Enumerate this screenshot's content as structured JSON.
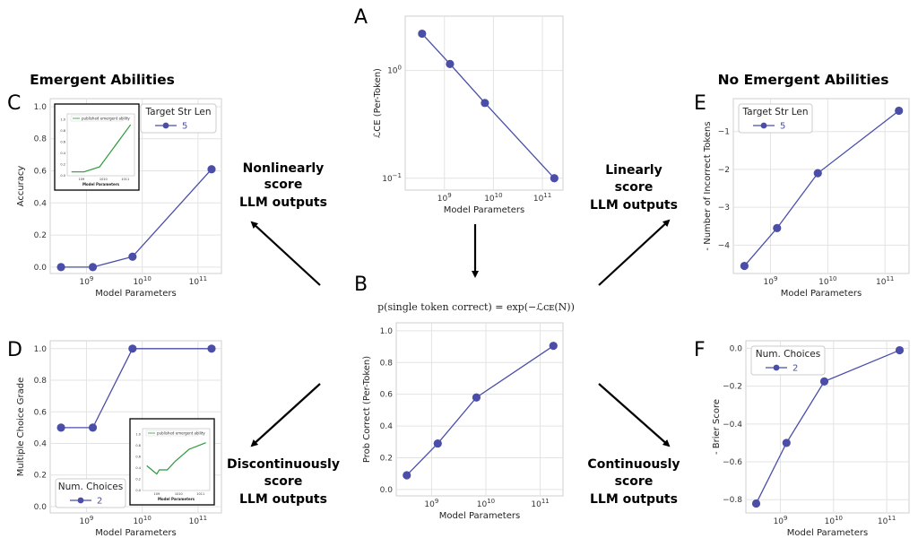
{
  "figure": {
    "panel_labels": [
      "A",
      "B",
      "C",
      "D",
      "E",
      "F"
    ],
    "headers": {
      "left": "Emergent Abilities",
      "right": "No Emergent Abilities"
    },
    "arrow_labels": {
      "top_left": [
        "Nonlinearly",
        "score",
        "LLM outputs"
      ],
      "bottom_left": [
        "Discontinuously",
        "score",
        "LLM outputs"
      ],
      "top_right": [
        "Linearly",
        "score",
        "LLM outputs"
      ],
      "bottom_right": [
        "Continuously",
        "score",
        "LLM outputs"
      ]
    },
    "formula_B": "p(single token correct) = exp(−ℒᴄᴇ(N))"
  },
  "chart_data": [
    {
      "panel": "A",
      "type": "line",
      "x_scale": "log",
      "y_scale": "log",
      "xlabel": "Model Parameters",
      "ylabel": "ℒCE (Per-Token)",
      "x_ticks": [
        "10^9",
        "10^10",
        "10^11"
      ],
      "y_ticks": [
        "10^0",
        "10^-1"
      ],
      "grid": true,
      "color": "#4a4ea8",
      "x": [
        350000000.0,
        1300000000.0,
        6700000000.0,
        175000000000.0
      ],
      "y": [
        2.2,
        1.15,
        0.5,
        0.1
      ]
    },
    {
      "panel": "B",
      "type": "line",
      "x_scale": "log",
      "xlabel": "Model Parameters",
      "ylabel": "Prob Correct (Per-Token)",
      "x_ticks": [
        "10^9",
        "10^10",
        "10^11"
      ],
      "ylim": [
        0.0,
        1.0
      ],
      "y_ticks": [
        "0.0",
        "0.2",
        "0.4",
        "0.6",
        "0.8",
        "1.0"
      ],
      "grid": true,
      "color": "#4a4ea8",
      "x": [
        350000000.0,
        1300000000.0,
        6700000000.0,
        175000000000.0
      ],
      "y": [
        0.09,
        0.29,
        0.58,
        0.905
      ]
    },
    {
      "panel": "C",
      "type": "line",
      "x_scale": "log",
      "xlabel": "Model Parameters",
      "ylabel": "Accuracy",
      "x_ticks": [
        "10^9",
        "10^10",
        "10^11"
      ],
      "ylim": [
        0.0,
        1.0
      ],
      "y_ticks": [
        "0.0",
        "0.2",
        "0.4",
        "0.6",
        "0.8",
        "1.0"
      ],
      "grid": true,
      "legend": {
        "title": "Target Str Len",
        "entries": [
          "5"
        ],
        "placement": "top-right"
      },
      "color": "#4a4ea8",
      "x": [
        350000000.0,
        1300000000.0,
        6700000000.0,
        175000000000.0
      ],
      "y": [
        0.0,
        0.0,
        0.065,
        0.61
      ]
    },
    {
      "panel": "D",
      "type": "line",
      "x_scale": "log",
      "xlabel": "Model Parameters",
      "ylabel": "Multiple Choice Grade",
      "x_ticks": [
        "10^9",
        "10^10",
        "10^11"
      ],
      "ylim": [
        0.0,
        1.0
      ],
      "y_ticks": [
        "0.0",
        "0.2",
        "0.4",
        "0.6",
        "0.8",
        "1.0"
      ],
      "grid": true,
      "legend": {
        "title": "Num. Choices",
        "entries": [
          "2"
        ],
        "placement": "bottom-left"
      },
      "color": "#4a4ea8",
      "x": [
        350000000.0,
        1300000000.0,
        6700000000.0,
        175000000000.0
      ],
      "y": [
        0.5,
        0.5,
        1.0,
        1.0
      ]
    },
    {
      "panel": "E",
      "type": "line",
      "x_scale": "log",
      "xlabel": "Model Parameters",
      "ylabel": "- Number of Incorrect Tokens",
      "x_ticks": [
        "10^9",
        "10^10",
        "10^11"
      ],
      "ylim": [
        -4.6,
        -0.2
      ],
      "y_ticks": [
        "-1",
        "-2",
        "-3",
        "-4"
      ],
      "grid": true,
      "legend": {
        "title": "Target Str Len",
        "entries": [
          "5"
        ],
        "placement": "top-left"
      },
      "color": "#4a4ea8",
      "x": [
        350000000.0,
        1300000000.0,
        6700000000.0,
        175000000000.0
      ],
      "y": [
        -4.55,
        -3.55,
        -2.1,
        -0.45
      ]
    },
    {
      "panel": "F",
      "type": "line",
      "x_scale": "log",
      "xlabel": "Model Parameters",
      "ylabel": "- Brier Score",
      "x_ticks": [
        "10^9",
        "10^10",
        "10^11"
      ],
      "ylim": [
        -0.85,
        0.02
      ],
      "y_ticks": [
        "0.0",
        "-0.2",
        "-0.4",
        "-0.6",
        "-0.8"
      ],
      "grid": true,
      "legend": {
        "title": "Num. Choices",
        "entries": [
          "2"
        ],
        "placement": "top-left"
      },
      "color": "#4a4ea8",
      "x": [
        350000000.0,
        1300000000.0,
        6700000000.0,
        175000000000.0
      ],
      "y": [
        -0.82,
        -0.5,
        -0.175,
        -0.01
      ]
    },
    {
      "panel": "C-inset",
      "type": "line",
      "legend": {
        "entries": [
          "published emergent ability"
        ]
      },
      "color": "#2a9a3a",
      "x": [
        350000000.0,
        1300000000.0,
        6700000000.0,
        175000000000.0
      ],
      "y": [
        0.0,
        0.0,
        0.065,
        0.61
      ]
    },
    {
      "panel": "D-inset",
      "type": "line",
      "legend": {
        "entries": [
          "published emergent ability"
        ]
      },
      "color": "#2a9a3a",
      "x": [
        350000000.0,
        1000000000.0,
        1300000000.0,
        3000000000.0,
        6700000000.0,
        30000000000.0,
        175000000000.0
      ],
      "y": [
        0.3,
        0.2,
        0.25,
        0.25,
        0.35,
        0.5,
        0.58
      ]
    }
  ]
}
